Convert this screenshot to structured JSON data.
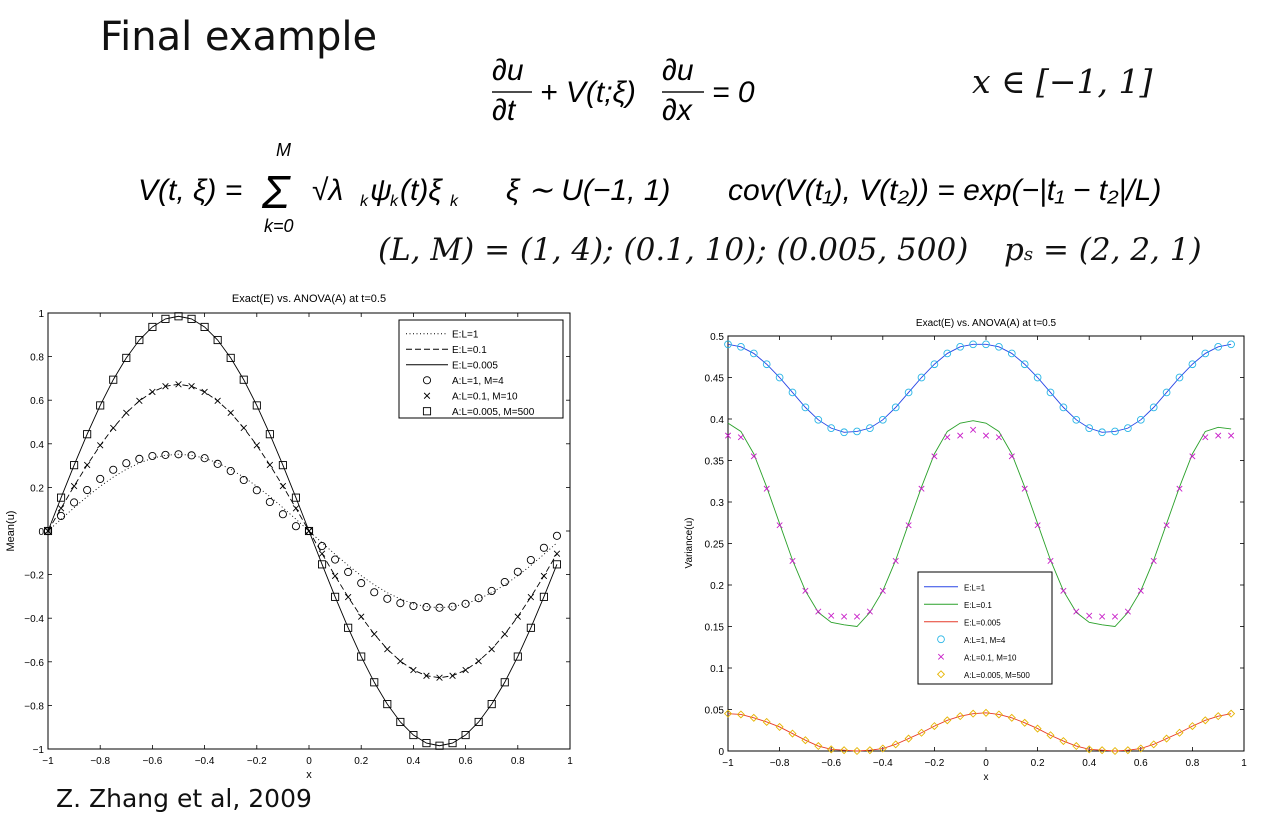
{
  "slide": {
    "title": "Final example",
    "eq1": "∂u/∂t + V(t;ξ) ∂u/∂x = 0",
    "eq1_domain": "x ∈ [−1, 1]",
    "eq2": "V(t,ξ) = Σ_{k=0}^{M} √λk ψk(t) ξk    ξ ∼ U(−1,1)    cov(V(t1),V(t2)) = exp(−|t1 − t2|/L)",
    "eq3": "(L, M) = (1, 4); (0.1, 10); (0.005, 500)",
    "eq3_ps": "ps = (2, 2, 1)",
    "citation": "Z. Zhang et al, 2009"
  },
  "chart_data": [
    {
      "type": "line",
      "title": "Exact(E) vs. ANOVA(A) at t=0.5",
      "xlabel": "x",
      "ylabel": "Mean(u)",
      "xlim": [
        -1,
        1
      ],
      "ylim": [
        -1,
        1
      ],
      "xticks": [
        "−1",
        "−0.8",
        "−0.6",
        "−0.4",
        "−0.2",
        "0",
        "0.2",
        "0.4",
        "0.6",
        "0.8",
        "1"
      ],
      "yticks": [
        "1",
        "0.8",
        "0.6",
        "0.4",
        "0.2",
        "0",
        "−0.2",
        "−0.4",
        "−0.6",
        "−0.8",
        "−1"
      ],
      "legend_position": "top-right",
      "x": [
        -1.0,
        -0.95,
        -0.9,
        -0.85,
        -0.8,
        -0.75,
        -0.7,
        -0.65,
        -0.6,
        -0.55,
        -0.5,
        -0.45,
        -0.4,
        -0.35,
        -0.3,
        -0.25,
        -0.2,
        -0.15,
        -0.1,
        -0.05,
        0.0,
        0.05,
        0.1,
        0.15,
        0.2,
        0.25,
        0.3,
        0.35,
        0.4,
        0.45,
        0.5,
        0.55,
        0.6,
        0.65,
        0.7,
        0.75,
        0.8,
        0.85,
        0.9,
        0.95
      ],
      "series": [
        {
          "name": "E:L=1",
          "style": "dotted",
          "color": "#000000",
          "values": [
            0.0,
            0.054,
            0.107,
            0.158,
            0.205,
            0.247,
            0.283,
            0.312,
            0.334,
            0.347,
            0.352,
            0.347,
            0.334,
            0.312,
            0.283,
            0.247,
            0.205,
            0.158,
            0.107,
            0.054,
            0.0,
            -0.054,
            -0.107,
            -0.158,
            -0.205,
            -0.247,
            -0.283,
            -0.312,
            -0.334,
            -0.347,
            -0.352,
            -0.347,
            -0.334,
            -0.312,
            -0.283,
            -0.247,
            -0.205,
            -0.158,
            -0.107,
            -0.054
          ]
        },
        {
          "name": "E:L=0.1",
          "style": "dashed",
          "color": "#000000",
          "values": [
            0.0,
            0.104,
            0.206,
            0.303,
            0.393,
            0.473,
            0.542,
            0.597,
            0.638,
            0.664,
            0.673,
            0.664,
            0.638,
            0.597,
            0.542,
            0.473,
            0.393,
            0.303,
            0.206,
            0.104,
            0.0,
            -0.104,
            -0.206,
            -0.303,
            -0.393,
            -0.473,
            -0.542,
            -0.597,
            -0.638,
            -0.664,
            -0.673,
            -0.664,
            -0.638,
            -0.597,
            -0.542,
            -0.473,
            -0.393,
            -0.303,
            -0.206,
            -0.104
          ]
        },
        {
          "name": "E:L=0.005",
          "style": "solid",
          "color": "#000000",
          "values": [
            0.0,
            0.153,
            0.302,
            0.444,
            0.576,
            0.694,
            0.794,
            0.876,
            0.936,
            0.973,
            0.985,
            0.973,
            0.936,
            0.876,
            0.794,
            0.694,
            0.576,
            0.444,
            0.302,
            0.153,
            0.0,
            -0.153,
            -0.302,
            -0.444,
            -0.576,
            -0.694,
            -0.794,
            -0.876,
            -0.936,
            -0.973,
            -0.985,
            -0.973,
            -0.936,
            -0.876,
            -0.794,
            -0.694,
            -0.576,
            -0.444,
            -0.302,
            -0.153
          ]
        },
        {
          "name": "A:L=1, M=4",
          "marker": "circle",
          "color": "#000000",
          "values": [
            0.0,
            0.069,
            0.131,
            0.188,
            0.239,
            0.281,
            0.311,
            0.331,
            0.344,
            0.349,
            0.352,
            0.347,
            0.334,
            0.308,
            0.275,
            0.234,
            0.187,
            0.133,
            0.077,
            0.022,
            0.0,
            -0.069,
            -0.131,
            -0.188,
            -0.239,
            -0.281,
            -0.311,
            -0.331,
            -0.344,
            -0.349,
            -0.352,
            -0.347,
            -0.334,
            -0.308,
            -0.275,
            -0.234,
            -0.187,
            -0.133,
            -0.077,
            -0.022
          ]
        },
        {
          "name": "A:L=0.1, M=10",
          "marker": "x",
          "color": "#000000",
          "values": [
            0.0,
            0.104,
            0.206,
            0.303,
            0.393,
            0.473,
            0.542,
            0.597,
            0.638,
            0.664,
            0.673,
            0.664,
            0.638,
            0.597,
            0.542,
            0.473,
            0.393,
            0.303,
            0.206,
            0.104,
            0.0,
            -0.104,
            -0.206,
            -0.303,
            -0.393,
            -0.473,
            -0.542,
            -0.597,
            -0.638,
            -0.664,
            -0.673,
            -0.664,
            -0.638,
            -0.597,
            -0.542,
            -0.473,
            -0.393,
            -0.303,
            -0.206,
            -0.104
          ]
        },
        {
          "name": "A:L=0.005, M=500",
          "marker": "square",
          "color": "#000000",
          "values": [
            0.0,
            0.153,
            0.302,
            0.444,
            0.576,
            0.694,
            0.794,
            0.876,
            0.936,
            0.973,
            0.985,
            0.973,
            0.936,
            0.876,
            0.794,
            0.694,
            0.576,
            0.444,
            0.302,
            0.153,
            0.0,
            -0.153,
            -0.302,
            -0.444,
            -0.576,
            -0.694,
            -0.794,
            -0.876,
            -0.936,
            -0.973,
            -0.985,
            -0.973,
            -0.936,
            -0.876,
            -0.794,
            -0.694,
            -0.576,
            -0.444,
            -0.302,
            -0.153
          ]
        }
      ]
    },
    {
      "type": "line",
      "title": "Exact(E) vs. ANOVA(A) at t=0.5",
      "xlabel": "x",
      "ylabel": "Variance(u)",
      "xlim": [
        -1,
        1
      ],
      "ylim": [
        0,
        0.5
      ],
      "xticks": [
        "−1",
        "−0.8",
        "−0.6",
        "−0.4",
        "−0.2",
        "0",
        "0.2",
        "0.4",
        "0.6",
        "0.8",
        "1"
      ],
      "yticks": [
        "0.5",
        "0.45",
        "0.4",
        "0.35",
        "0.3",
        "0.25",
        "0.2",
        "0.15",
        "0.1",
        "0.05",
        "0"
      ],
      "legend_position": "center-left",
      "x": [
        -1.0,
        -0.95,
        -0.9,
        -0.85,
        -0.8,
        -0.75,
        -0.7,
        -0.65,
        -0.6,
        -0.55,
        -0.5,
        -0.45,
        -0.4,
        -0.35,
        -0.3,
        -0.25,
        -0.2,
        -0.15,
        -0.1,
        -0.05,
        0.0,
        0.05,
        0.1,
        0.15,
        0.2,
        0.25,
        0.3,
        0.35,
        0.4,
        0.45,
        0.5,
        0.55,
        0.6,
        0.65,
        0.7,
        0.75,
        0.8,
        0.85,
        0.9,
        0.95
      ],
      "series": [
        {
          "name": "E:L=1",
          "style": "solid",
          "color": "#2846e6",
          "values": [
            0.49,
            0.487,
            0.479,
            0.466,
            0.45,
            0.432,
            0.414,
            0.399,
            0.389,
            0.384,
            0.385,
            0.389,
            0.399,
            0.414,
            0.432,
            0.45,
            0.466,
            0.479,
            0.487,
            0.49,
            0.49,
            0.487,
            0.479,
            0.466,
            0.45,
            0.432,
            0.414,
            0.399,
            0.389,
            0.384,
            0.385,
            0.389,
            0.399,
            0.414,
            0.432,
            0.45,
            0.466,
            0.479,
            0.487,
            0.49
          ]
        },
        {
          "name": "E:L=0.1",
          "style": "solid",
          "color": "#2aa12a",
          "values": [
            0.395,
            0.385,
            0.358,
            0.318,
            0.274,
            0.23,
            0.193,
            0.167,
            0.155,
            0.152,
            0.15,
            0.167,
            0.193,
            0.23,
            0.274,
            0.318,
            0.358,
            0.385,
            0.395,
            0.398,
            0.395,
            0.385,
            0.358,
            0.318,
            0.274,
            0.23,
            0.193,
            0.167,
            0.155,
            0.152,
            0.15,
            0.167,
            0.193,
            0.23,
            0.274,
            0.318,
            0.358,
            0.385,
            0.39,
            0.388
          ]
        },
        {
          "name": "E:L=0.005",
          "style": "solid",
          "color": "#e63a2a",
          "values": [
            0.045,
            0.044,
            0.04,
            0.035,
            0.029,
            0.021,
            0.013,
            0.006,
            0.002,
            0.001,
            0.0,
            0.001,
            0.003,
            0.008,
            0.015,
            0.022,
            0.03,
            0.037,
            0.042,
            0.045,
            0.046,
            0.044,
            0.04,
            0.034,
            0.027,
            0.019,
            0.012,
            0.006,
            0.002,
            0.001,
            0.0,
            0.001,
            0.003,
            0.008,
            0.015,
            0.022,
            0.03,
            0.037,
            0.042,
            0.045
          ]
        },
        {
          "name": "A:L=1, M=4",
          "marker": "circle",
          "color": "#29b6e6",
          "values": [
            0.49,
            0.487,
            0.479,
            0.466,
            0.45,
            0.432,
            0.414,
            0.399,
            0.389,
            0.384,
            0.385,
            0.389,
            0.399,
            0.414,
            0.432,
            0.45,
            0.466,
            0.479,
            0.487,
            0.49,
            0.49,
            0.487,
            0.479,
            0.466,
            0.45,
            0.432,
            0.414,
            0.399,
            0.389,
            0.384,
            0.385,
            0.389,
            0.399,
            0.414,
            0.432,
            0.45,
            0.466,
            0.479,
            0.487,
            0.49
          ]
        },
        {
          "name": "A:L=0.1, M=10",
          "marker": "x",
          "color": "#c81ec8",
          "values": [
            0.38,
            0.378,
            0.355,
            0.316,
            0.272,
            0.229,
            0.193,
            0.168,
            0.163,
            0.162,
            0.162,
            0.168,
            0.193,
            0.229,
            0.272,
            0.316,
            0.355,
            0.378,
            0.38,
            0.387,
            0.38,
            0.378,
            0.355,
            0.316,
            0.272,
            0.229,
            0.193,
            0.168,
            0.163,
            0.162,
            0.162,
            0.168,
            0.193,
            0.229,
            0.272,
            0.316,
            0.355,
            0.378,
            0.38,
            0.38
          ]
        },
        {
          "name": "A:L=0.005, M=500",
          "marker": "diamond",
          "color": "#e6b400",
          "values": [
            0.045,
            0.044,
            0.04,
            0.035,
            0.029,
            0.021,
            0.013,
            0.006,
            0.002,
            0.001,
            0.0,
            0.001,
            0.003,
            0.008,
            0.015,
            0.022,
            0.03,
            0.037,
            0.042,
            0.045,
            0.046,
            0.044,
            0.04,
            0.034,
            0.027,
            0.019,
            0.012,
            0.006,
            0.002,
            0.001,
            0.0,
            0.001,
            0.003,
            0.008,
            0.015,
            0.022,
            0.03,
            0.037,
            0.042,
            0.045
          ]
        }
      ]
    }
  ]
}
